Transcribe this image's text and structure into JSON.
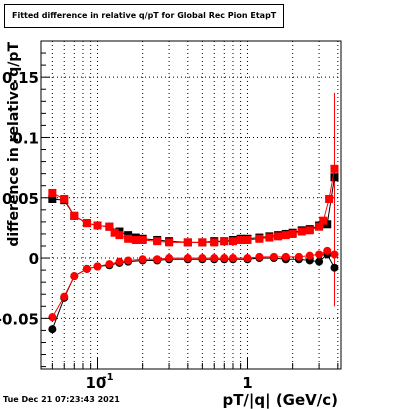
{
  "chart_data": {
    "type": "scatter",
    "title": "Fitted difference in relative q/pT for Global Rec Pion EtapT",
    "xlabel": "pT/|q| (GeV/c)",
    "ylabel": "difference in relative q/pT",
    "xscale": "log",
    "xlim": [
      0.042,
      4.2
    ],
    "ylim": [
      -0.092,
      0.18
    ],
    "grid": true,
    "x_ticks": [
      {
        "value": 0.1,
        "base": "10",
        "exp": "-1"
      },
      {
        "value": 1,
        "label": "1"
      }
    ],
    "y_ticks": [
      {
        "value": -0.05,
        "label": "-0.05"
      },
      {
        "value": 0,
        "label": "0"
      },
      {
        "value": 0.05,
        "label": "0.05"
      },
      {
        "value": 0.1,
        "label": "0.1"
      },
      {
        "value": 0.15,
        "label": "0.15"
      }
    ],
    "series": [
      {
        "color": "#000000",
        "marker": "square",
        "points": [
          [
            0.05,
            0.049
          ],
          [
            0.06,
            0.048
          ],
          [
            0.07,
            0.035
          ],
          [
            0.085,
            0.029
          ],
          [
            0.1,
            0.027
          ],
          [
            0.12,
            0.026
          ],
          [
            0.14,
            0.022
          ],
          [
            0.16,
            0.019
          ],
          [
            0.18,
            0.017
          ],
          [
            0.2,
            0.016
          ],
          [
            0.25,
            0.015
          ],
          [
            0.3,
            0.014
          ],
          [
            0.4,
            0.013
          ],
          [
            0.5,
            0.013
          ],
          [
            0.6,
            0.014
          ],
          [
            0.7,
            0.014
          ],
          [
            0.8,
            0.015
          ],
          [
            0.9,
            0.016
          ],
          [
            1.0,
            0.016
          ],
          [
            1.2,
            0.017
          ],
          [
            1.4,
            0.018
          ],
          [
            1.6,
            0.019
          ],
          [
            1.8,
            0.02
          ],
          [
            2.0,
            0.021
          ],
          [
            2.3,
            0.023
          ],
          [
            2.6,
            0.024
          ],
          [
            3.0,
            0.027
          ],
          [
            3.4,
            0.028
          ],
          [
            3.8,
            0.067
          ]
        ]
      },
      {
        "color": "#000000",
        "marker": "circle",
        "points": [
          [
            0.05,
            -0.059
          ],
          [
            0.06,
            -0.033
          ],
          [
            0.07,
            -0.015
          ],
          [
            0.085,
            -0.009
          ],
          [
            0.1,
            -0.007
          ],
          [
            0.12,
            -0.006
          ],
          [
            0.14,
            -0.004
          ],
          [
            0.16,
            -0.003
          ],
          [
            0.2,
            -0.002
          ],
          [
            0.25,
            -0.002
          ],
          [
            0.3,
            -0.001
          ],
          [
            0.4,
            -0.001
          ],
          [
            0.5,
            -0.001
          ],
          [
            0.6,
            -0.001
          ],
          [
            0.7,
            -0.001
          ],
          [
            0.8,
            -0.001
          ],
          [
            1.0,
            -0.001
          ],
          [
            1.2,
            0.0
          ],
          [
            1.5,
            0.0
          ],
          [
            1.8,
            -0.001
          ],
          [
            2.2,
            -0.001
          ],
          [
            2.6,
            -0.002
          ],
          [
            3.0,
            -0.003
          ],
          [
            3.4,
            0.003
          ],
          [
            3.8,
            -0.008
          ]
        ]
      },
      {
        "color": "#ff0000",
        "marker": "square",
        "points": [
          [
            0.05,
            0.054
          ],
          [
            0.06,
            0.049
          ],
          [
            0.07,
            0.035
          ],
          [
            0.085,
            0.029
          ],
          [
            0.1,
            0.027
          ],
          [
            0.12,
            0.026
          ],
          [
            0.13,
            0.021
          ],
          [
            0.14,
            0.019
          ],
          [
            0.16,
            0.016
          ],
          [
            0.18,
            0.015
          ],
          [
            0.2,
            0.015
          ],
          [
            0.25,
            0.014
          ],
          [
            0.3,
            0.013
          ],
          [
            0.4,
            0.013
          ],
          [
            0.5,
            0.013
          ],
          [
            0.6,
            0.013
          ],
          [
            0.7,
            0.014
          ],
          [
            0.8,
            0.014
          ],
          [
            0.9,
            0.015
          ],
          [
            1.0,
            0.015
          ],
          [
            1.2,
            0.016
          ],
          [
            1.4,
            0.017
          ],
          [
            1.6,
            0.018
          ],
          [
            1.8,
            0.019
          ],
          [
            2.0,
            0.02
          ],
          [
            2.3,
            0.022
          ],
          [
            2.6,
            0.023
          ],
          [
            3.0,
            0.026
          ],
          [
            3.2,
            0.031
          ],
          [
            3.5,
            0.049
          ],
          [
            3.8,
            0.074
          ]
        ]
      },
      {
        "color": "#ff0000",
        "marker": "circle",
        "points": [
          [
            0.05,
            -0.049
          ],
          [
            0.06,
            -0.032
          ],
          [
            0.07,
            -0.015
          ],
          [
            0.085,
            -0.009
          ],
          [
            0.1,
            -0.007
          ],
          [
            0.12,
            -0.005
          ],
          [
            0.14,
            -0.003
          ],
          [
            0.16,
            -0.002
          ],
          [
            0.2,
            -0.001
          ],
          [
            0.25,
            -0.001
          ],
          [
            0.3,
            0.0
          ],
          [
            0.4,
            0.0
          ],
          [
            0.5,
            0.0
          ],
          [
            0.6,
            0.0
          ],
          [
            0.7,
            0.0
          ],
          [
            0.8,
            0.0
          ],
          [
            1.0,
            0.0
          ],
          [
            1.2,
            0.001
          ],
          [
            1.5,
            0.001
          ],
          [
            1.8,
            0.001
          ],
          [
            2.2,
            0.001
          ],
          [
            2.6,
            0.002
          ],
          [
            3.0,
            0.003
          ],
          [
            3.4,
            0.006
          ],
          [
            3.8,
            0.003
          ]
        ]
      }
    ]
  },
  "timestamp": "Tue Dec 21 07:23:43 2021"
}
